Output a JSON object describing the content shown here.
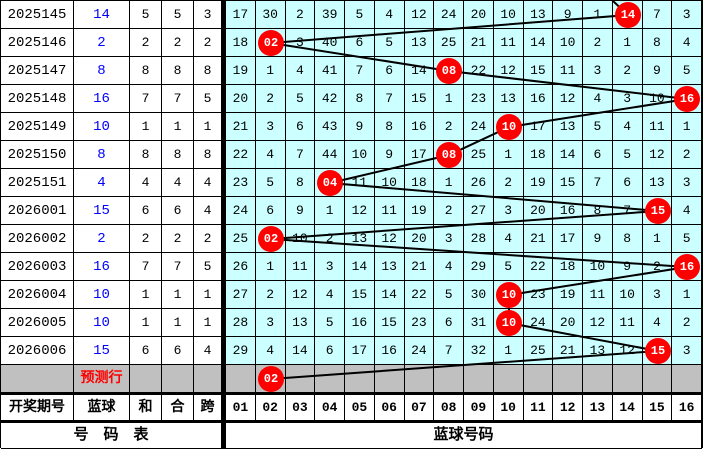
{
  "columns": {
    "period": "开奖期号",
    "blue": "蓝球",
    "sum": "和",
    "union": "合",
    "span": "跨"
  },
  "ball_columns": [
    "01",
    "02",
    "03",
    "04",
    "05",
    "06",
    "07",
    "08",
    "09",
    "10",
    "11",
    "12",
    "13",
    "14",
    "15",
    "16"
  ],
  "footer": {
    "left": "号　码　表",
    "right": "蓝球号码"
  },
  "prediction": {
    "label": "预测行",
    "circle_col": 2,
    "circle_label": "02"
  },
  "trend_entry_col": 13,
  "colors": {
    "grid_bg": "#CCFFFF",
    "prediction_bg": "#C0C0C0",
    "circle_red": "#FF0000",
    "blue_text": "#0000FF",
    "line": "#000000"
  },
  "rows": [
    {
      "period": "2025145",
      "blue": "14",
      "sum": "5",
      "union": "5",
      "span": "3",
      "circle_col": 14,
      "circle_label": "14",
      "miss": [
        "17",
        "30",
        "2",
        "39",
        "5",
        "4",
        "12",
        "24",
        "20",
        "10",
        "13",
        "9",
        "1",
        "",
        "7",
        "3"
      ]
    },
    {
      "period": "2025146",
      "blue": "2",
      "sum": "2",
      "union": "2",
      "span": "2",
      "circle_col": 2,
      "circle_label": "02",
      "miss": [
        "18",
        "",
        "3",
        "40",
        "6",
        "5",
        "13",
        "25",
        "21",
        "11",
        "14",
        "10",
        "2",
        "1",
        "8",
        "4"
      ]
    },
    {
      "period": "2025147",
      "blue": "8",
      "sum": "8",
      "union": "8",
      "span": "8",
      "circle_col": 8,
      "circle_label": "08",
      "miss": [
        "19",
        "1",
        "4",
        "41",
        "7",
        "6",
        "14",
        "",
        "22",
        "12",
        "15",
        "11",
        "3",
        "2",
        "9",
        "5"
      ]
    },
    {
      "period": "2025148",
      "blue": "16",
      "sum": "7",
      "union": "7",
      "span": "5",
      "circle_col": 16,
      "circle_label": "16",
      "miss": [
        "20",
        "2",
        "5",
        "42",
        "8",
        "7",
        "15",
        "1",
        "23",
        "13",
        "16",
        "12",
        "4",
        "3",
        "10",
        ""
      ]
    },
    {
      "period": "2025149",
      "blue": "10",
      "sum": "1",
      "union": "1",
      "span": "1",
      "circle_col": 10,
      "circle_label": "10",
      "miss": [
        "21",
        "3",
        "6",
        "43",
        "9",
        "8",
        "16",
        "2",
        "24",
        "",
        "17",
        "13",
        "5",
        "4",
        "11",
        "1"
      ]
    },
    {
      "period": "2025150",
      "blue": "8",
      "sum": "8",
      "union": "8",
      "span": "8",
      "circle_col": 8,
      "circle_label": "08",
      "miss": [
        "22",
        "4",
        "7",
        "44",
        "10",
        "9",
        "17",
        "",
        "25",
        "1",
        "18",
        "14",
        "6",
        "5",
        "12",
        "2"
      ]
    },
    {
      "period": "2025151",
      "blue": "4",
      "sum": "4",
      "union": "4",
      "span": "4",
      "circle_col": 4,
      "circle_label": "04",
      "miss": [
        "23",
        "5",
        "8",
        "",
        "11",
        "10",
        "18",
        "1",
        "26",
        "2",
        "19",
        "15",
        "7",
        "6",
        "13",
        "3"
      ]
    },
    {
      "period": "2026001",
      "blue": "15",
      "sum": "6",
      "union": "6",
      "span": "4",
      "circle_col": 15,
      "circle_label": "15",
      "miss": [
        "24",
        "6",
        "9",
        "1",
        "12",
        "11",
        "19",
        "2",
        "27",
        "3",
        "20",
        "16",
        "8",
        "7",
        "",
        "4"
      ]
    },
    {
      "period": "2026002",
      "blue": "2",
      "sum": "2",
      "union": "2",
      "span": "2",
      "circle_col": 2,
      "circle_label": "02",
      "miss": [
        "25",
        "",
        "10",
        "2",
        "13",
        "12",
        "20",
        "3",
        "28",
        "4",
        "21",
        "17",
        "9",
        "8",
        "1",
        "5"
      ]
    },
    {
      "period": "2026003",
      "blue": "16",
      "sum": "7",
      "union": "7",
      "span": "5",
      "circle_col": 16,
      "circle_label": "16",
      "miss": [
        "26",
        "1",
        "11",
        "3",
        "14",
        "13",
        "21",
        "4",
        "29",
        "5",
        "22",
        "18",
        "10",
        "9",
        "2",
        ""
      ]
    },
    {
      "period": "2026004",
      "blue": "10",
      "sum": "1",
      "union": "1",
      "span": "1",
      "circle_col": 10,
      "circle_label": "10",
      "miss": [
        "27",
        "2",
        "12",
        "4",
        "15",
        "14",
        "22",
        "5",
        "30",
        "",
        "23",
        "19",
        "11",
        "10",
        "3",
        "1"
      ]
    },
    {
      "period": "2026005",
      "blue": "10",
      "sum": "1",
      "union": "1",
      "span": "1",
      "circle_col": 10,
      "circle_label": "10",
      "miss": [
        "28",
        "3",
        "13",
        "5",
        "16",
        "15",
        "23",
        "6",
        "31",
        "",
        "24",
        "20",
        "12",
        "11",
        "4",
        "2"
      ]
    },
    {
      "period": "2026006",
      "blue": "15",
      "sum": "6",
      "union": "6",
      "span": "4",
      "circle_col": 15,
      "circle_label": "15",
      "miss": [
        "29",
        "4",
        "14",
        "6",
        "17",
        "16",
        "24",
        "7",
        "32",
        "1",
        "25",
        "21",
        "13",
        "12",
        "",
        "3"
      ]
    }
  ]
}
